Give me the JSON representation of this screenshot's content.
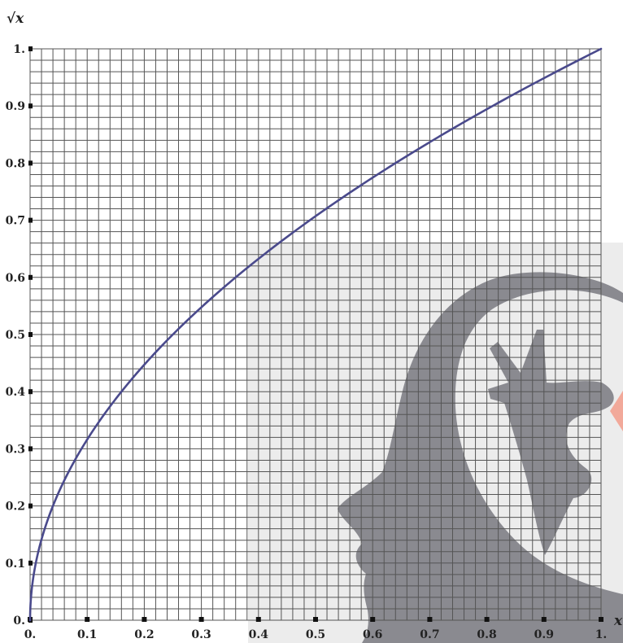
{
  "chart_data": {
    "type": "line",
    "title": "",
    "xlabel": "x",
    "ylabel": "√x",
    "xlim": [
      0,
      1
    ],
    "ylim": [
      0,
      1
    ],
    "grid": true,
    "grid_step": 0.02,
    "x_ticks": [
      "0.",
      "0.1",
      "0.2",
      "0.3",
      "0.4",
      "0.5",
      "0.6",
      "0.7",
      "0.8",
      "0.9",
      "1."
    ],
    "y_ticks": [
      "0.",
      "0.1",
      "0.2",
      "0.3",
      "0.4",
      "0.5",
      "0.6",
      "0.7",
      "0.8",
      "0.9",
      "1."
    ],
    "series": [
      {
        "function": "sqrt",
        "x": [
          0,
          0.01,
          0.02,
          0.05,
          0.1,
          0.2,
          0.3,
          0.4,
          0.5,
          0.6,
          0.7,
          0.8,
          0.9,
          1.0
        ],
        "y": [
          0,
          0.1,
          0.141,
          0.224,
          0.316,
          0.447,
          0.548,
          0.632,
          0.707,
          0.775,
          0.837,
          0.894,
          0.949,
          1.0
        ],
        "color": "#4a4a8c"
      }
    ]
  },
  "colors": {
    "grid": "#555555",
    "curve": "#4a4a8c",
    "watermark": "#8a8a90",
    "watermark_bg": "#ececec",
    "watermark_accent": "#f2a99a"
  },
  "watermark": {
    "icon": "head-silhouette-with-hand-watermark"
  }
}
